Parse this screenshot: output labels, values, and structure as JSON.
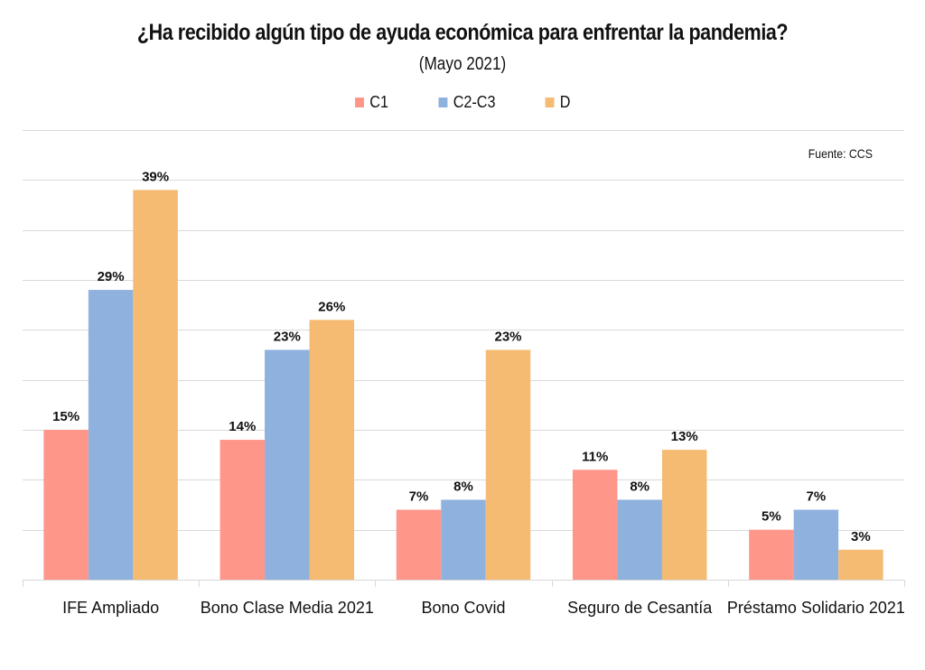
{
  "chart_data": {
    "type": "bar",
    "title": "¿Ha recibido algún tipo de ayuda económica para enfrentar la pandemia?",
    "subtitle": "(Mayo 2021)",
    "source": "Fuente: CCS",
    "xlabel": "",
    "ylabel": "",
    "ylim": [
      0,
      45
    ],
    "y_gridline_step": 5,
    "grid": true,
    "legend_position": "top-center",
    "categories": [
      "IFE Ampliado",
      "Bono Clase Media 2021",
      "Bono Covid",
      "Seguro de Cesantía",
      "Préstamo Solidario 2021"
    ],
    "series": [
      {
        "name": "C1",
        "color": "#FF968A",
        "values": [
          15,
          14,
          7,
          11,
          5
        ]
      },
      {
        "name": "C2-C3",
        "color": "#8EB1DE",
        "values": [
          29,
          23,
          8,
          8,
          7
        ]
      },
      {
        "name": "D",
        "color": "#F5BB72",
        "values": [
          39,
          26,
          23,
          13,
          3
        ]
      }
    ],
    "value_suffix": "%"
  }
}
